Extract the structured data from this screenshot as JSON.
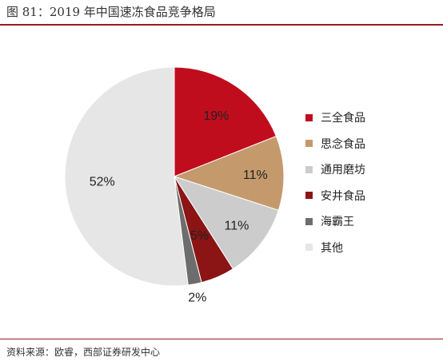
{
  "title": "图 81：2019 年中国速冻食品竞争格局",
  "source": "资料来源：欧睿，西部证券研发中心",
  "chart_data": {
    "type": "pie",
    "start_angle_deg": 0,
    "direction": "clockwise",
    "slices": [
      {
        "name": "三全食品",
        "value": 19,
        "label": "19%",
        "color": "#c00d1e"
      },
      {
        "name": "思念食品",
        "value": 11,
        "label": "11%",
        "color": "#c49a6c"
      },
      {
        "name": "通用磨坊",
        "value": 11,
        "label": "11%",
        "color": "#cccccc"
      },
      {
        "name": "安井食品",
        "value": 5,
        "label": "5%",
        "color": "#8b1414"
      },
      {
        "name": "海霸王",
        "value": 2,
        "label": "2%",
        "color": "#6d6d6d"
      },
      {
        "name": "其他",
        "value": 52,
        "label": "52%",
        "color": "#e6e6e6"
      }
    ],
    "legend_position": "right"
  }
}
